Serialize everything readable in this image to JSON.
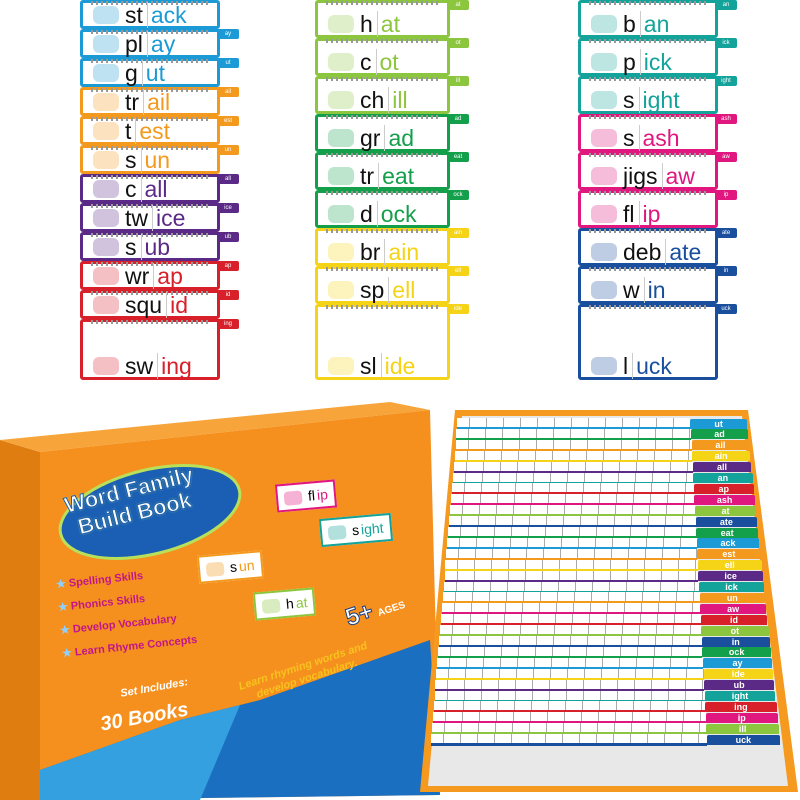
{
  "card_columns": [
    {
      "cards": [
        {
          "onset": "st",
          "rime": "ack",
          "tab": "",
          "color": "#1c9ad6"
        },
        {
          "onset": "pl",
          "rime": "ay",
          "tab": "ay",
          "color": "#1c9ad6"
        },
        {
          "onset": "g",
          "rime": "ut",
          "tab": "ut",
          "color": "#1c9ad6"
        },
        {
          "onset": "tr",
          "rime": "ail",
          "tab": "ail",
          "color": "#f39a1e"
        },
        {
          "onset": "t",
          "rime": "est",
          "tab": "est",
          "color": "#f39a1e"
        },
        {
          "onset": "s",
          "rime": "un",
          "tab": "un",
          "color": "#f39a1e"
        },
        {
          "onset": "c",
          "rime": "all",
          "tab": "all",
          "color": "#5b2a86"
        },
        {
          "onset": "tw",
          "rime": "ice",
          "tab": "ice",
          "color": "#5b2a86"
        },
        {
          "onset": "s",
          "rime": "ub",
          "tab": "ub",
          "color": "#5b2a86"
        },
        {
          "onset": "wr",
          "rime": "ap",
          "tab": "ap",
          "color": "#d7202a"
        },
        {
          "onset": "squ",
          "rime": "id",
          "tab": "id",
          "color": "#d7202a"
        },
        {
          "onset": "sw",
          "rime": "ing",
          "tab": "ing",
          "color": "#d7202a"
        }
      ]
    },
    {
      "cards": [
        {
          "onset": "h",
          "rime": "at",
          "tab": "at",
          "color": "#8cc63e"
        },
        {
          "onset": "c",
          "rime": "ot",
          "tab": "ot",
          "color": "#8cc63e"
        },
        {
          "onset": "ch",
          "rime": "ill",
          "tab": "ill",
          "color": "#8cc63e"
        },
        {
          "onset": "gr",
          "rime": "ad",
          "tab": "ad",
          "color": "#14a04a"
        },
        {
          "onset": "tr",
          "rime": "eat",
          "tab": "eat",
          "color": "#14a04a"
        },
        {
          "onset": "d",
          "rime": "ock",
          "tab": "ock",
          "color": "#14a04a"
        },
        {
          "onset": "br",
          "rime": "ain",
          "tab": "ain",
          "color": "#f5d316"
        },
        {
          "onset": "sp",
          "rime": "ell",
          "tab": "ell",
          "color": "#f5d316"
        },
        {
          "onset": "sl",
          "rime": "ide",
          "tab": "ide",
          "color": "#f5d316"
        }
      ]
    },
    {
      "cards": [
        {
          "onset": "b",
          "rime": "an",
          "tab": "an",
          "color": "#14a39a"
        },
        {
          "onset": "p",
          "rime": "ick",
          "tab": "ick",
          "color": "#14a39a"
        },
        {
          "onset": "s",
          "rime": "ight",
          "tab": "ight",
          "color": "#14a39a"
        },
        {
          "onset": "s",
          "rime": "ash",
          "tab": "ash",
          "color": "#e0177f"
        },
        {
          "onset": "jigs",
          "rime": "aw",
          "tab": "aw",
          "color": "#e0177f"
        },
        {
          "onset": "fl",
          "rime": "ip",
          "tab": "ip",
          "color": "#e0177f"
        },
        {
          "onset": "deb",
          "rime": "ate",
          "tab": "ate",
          "color": "#1a4f9e"
        },
        {
          "onset": "w",
          "rime": "in",
          "tab": "in",
          "color": "#1a4f9e"
        },
        {
          "onset": "l",
          "rime": "uck",
          "tab": "uck",
          "color": "#1a4f9e"
        }
      ]
    }
  ],
  "box": {
    "title_line1": "Word Family",
    "title_line2": "Build Book",
    "features": [
      "Spelling Skills",
      "Phonics Skills",
      "Develop Vocabulary",
      "Learn Rhyme Concepts"
    ],
    "set_includes": "Set Includes:",
    "books": "30 Books",
    "ages": "5+",
    "ages_label": "AGES",
    "tagline_line1": "Learn rhyming words and",
    "tagline_line2": "develop vocabulary.",
    "samples": [
      {
        "onset": "fl",
        "rime": "ip",
        "color": "#e0177f"
      },
      {
        "onset": "s",
        "rime": "ight",
        "color": "#14a39a"
      },
      {
        "onset": "s",
        "rime": "un",
        "color": "#f39a1e"
      },
      {
        "onset": "h",
        "rime": "at",
        "color": "#8cc63e"
      }
    ],
    "colors": {
      "orange": "#f5901e",
      "blue": "#1b6fc0",
      "title_blue": "#1a5fb4"
    }
  },
  "tray": {
    "tabs": [
      {
        "label": "ut",
        "color": "#1c9ad6"
      },
      {
        "label": "ad",
        "color": "#14a04a"
      },
      {
        "label": "ail",
        "color": "#f39a1e"
      },
      {
        "label": "ain",
        "color": "#f5d316"
      },
      {
        "label": "all",
        "color": "#5b2a86"
      },
      {
        "label": "an",
        "color": "#14a39a"
      },
      {
        "label": "ap",
        "color": "#d7202a"
      },
      {
        "label": "ash",
        "color": "#e0177f"
      },
      {
        "label": "at",
        "color": "#8cc63e"
      },
      {
        "label": "ate",
        "color": "#1a4f9e"
      },
      {
        "label": "eat",
        "color": "#14a04a"
      },
      {
        "label": "ack",
        "color": "#1c9ad6"
      },
      {
        "label": "est",
        "color": "#f39a1e"
      },
      {
        "label": "ell",
        "color": "#f5d316"
      },
      {
        "label": "ice",
        "color": "#5b2a86"
      },
      {
        "label": "ick",
        "color": "#14a39a"
      },
      {
        "label": "un",
        "color": "#f39a1e"
      },
      {
        "label": "aw",
        "color": "#e0177f"
      },
      {
        "label": "id",
        "color": "#d7202a"
      },
      {
        "label": "ot",
        "color": "#8cc63e"
      },
      {
        "label": "in",
        "color": "#1a4f9e"
      },
      {
        "label": "ock",
        "color": "#14a04a"
      },
      {
        "label": "ay",
        "color": "#1c9ad6"
      },
      {
        "label": "ide",
        "color": "#f5d316"
      },
      {
        "label": "ub",
        "color": "#5b2a86"
      },
      {
        "label": "ight",
        "color": "#14a39a"
      },
      {
        "label": "ing",
        "color": "#d7202a"
      },
      {
        "label": "ip",
        "color": "#e0177f"
      },
      {
        "label": "ill",
        "color": "#8cc63e"
      },
      {
        "label": "uck",
        "color": "#1a4f9e"
      }
    ]
  }
}
